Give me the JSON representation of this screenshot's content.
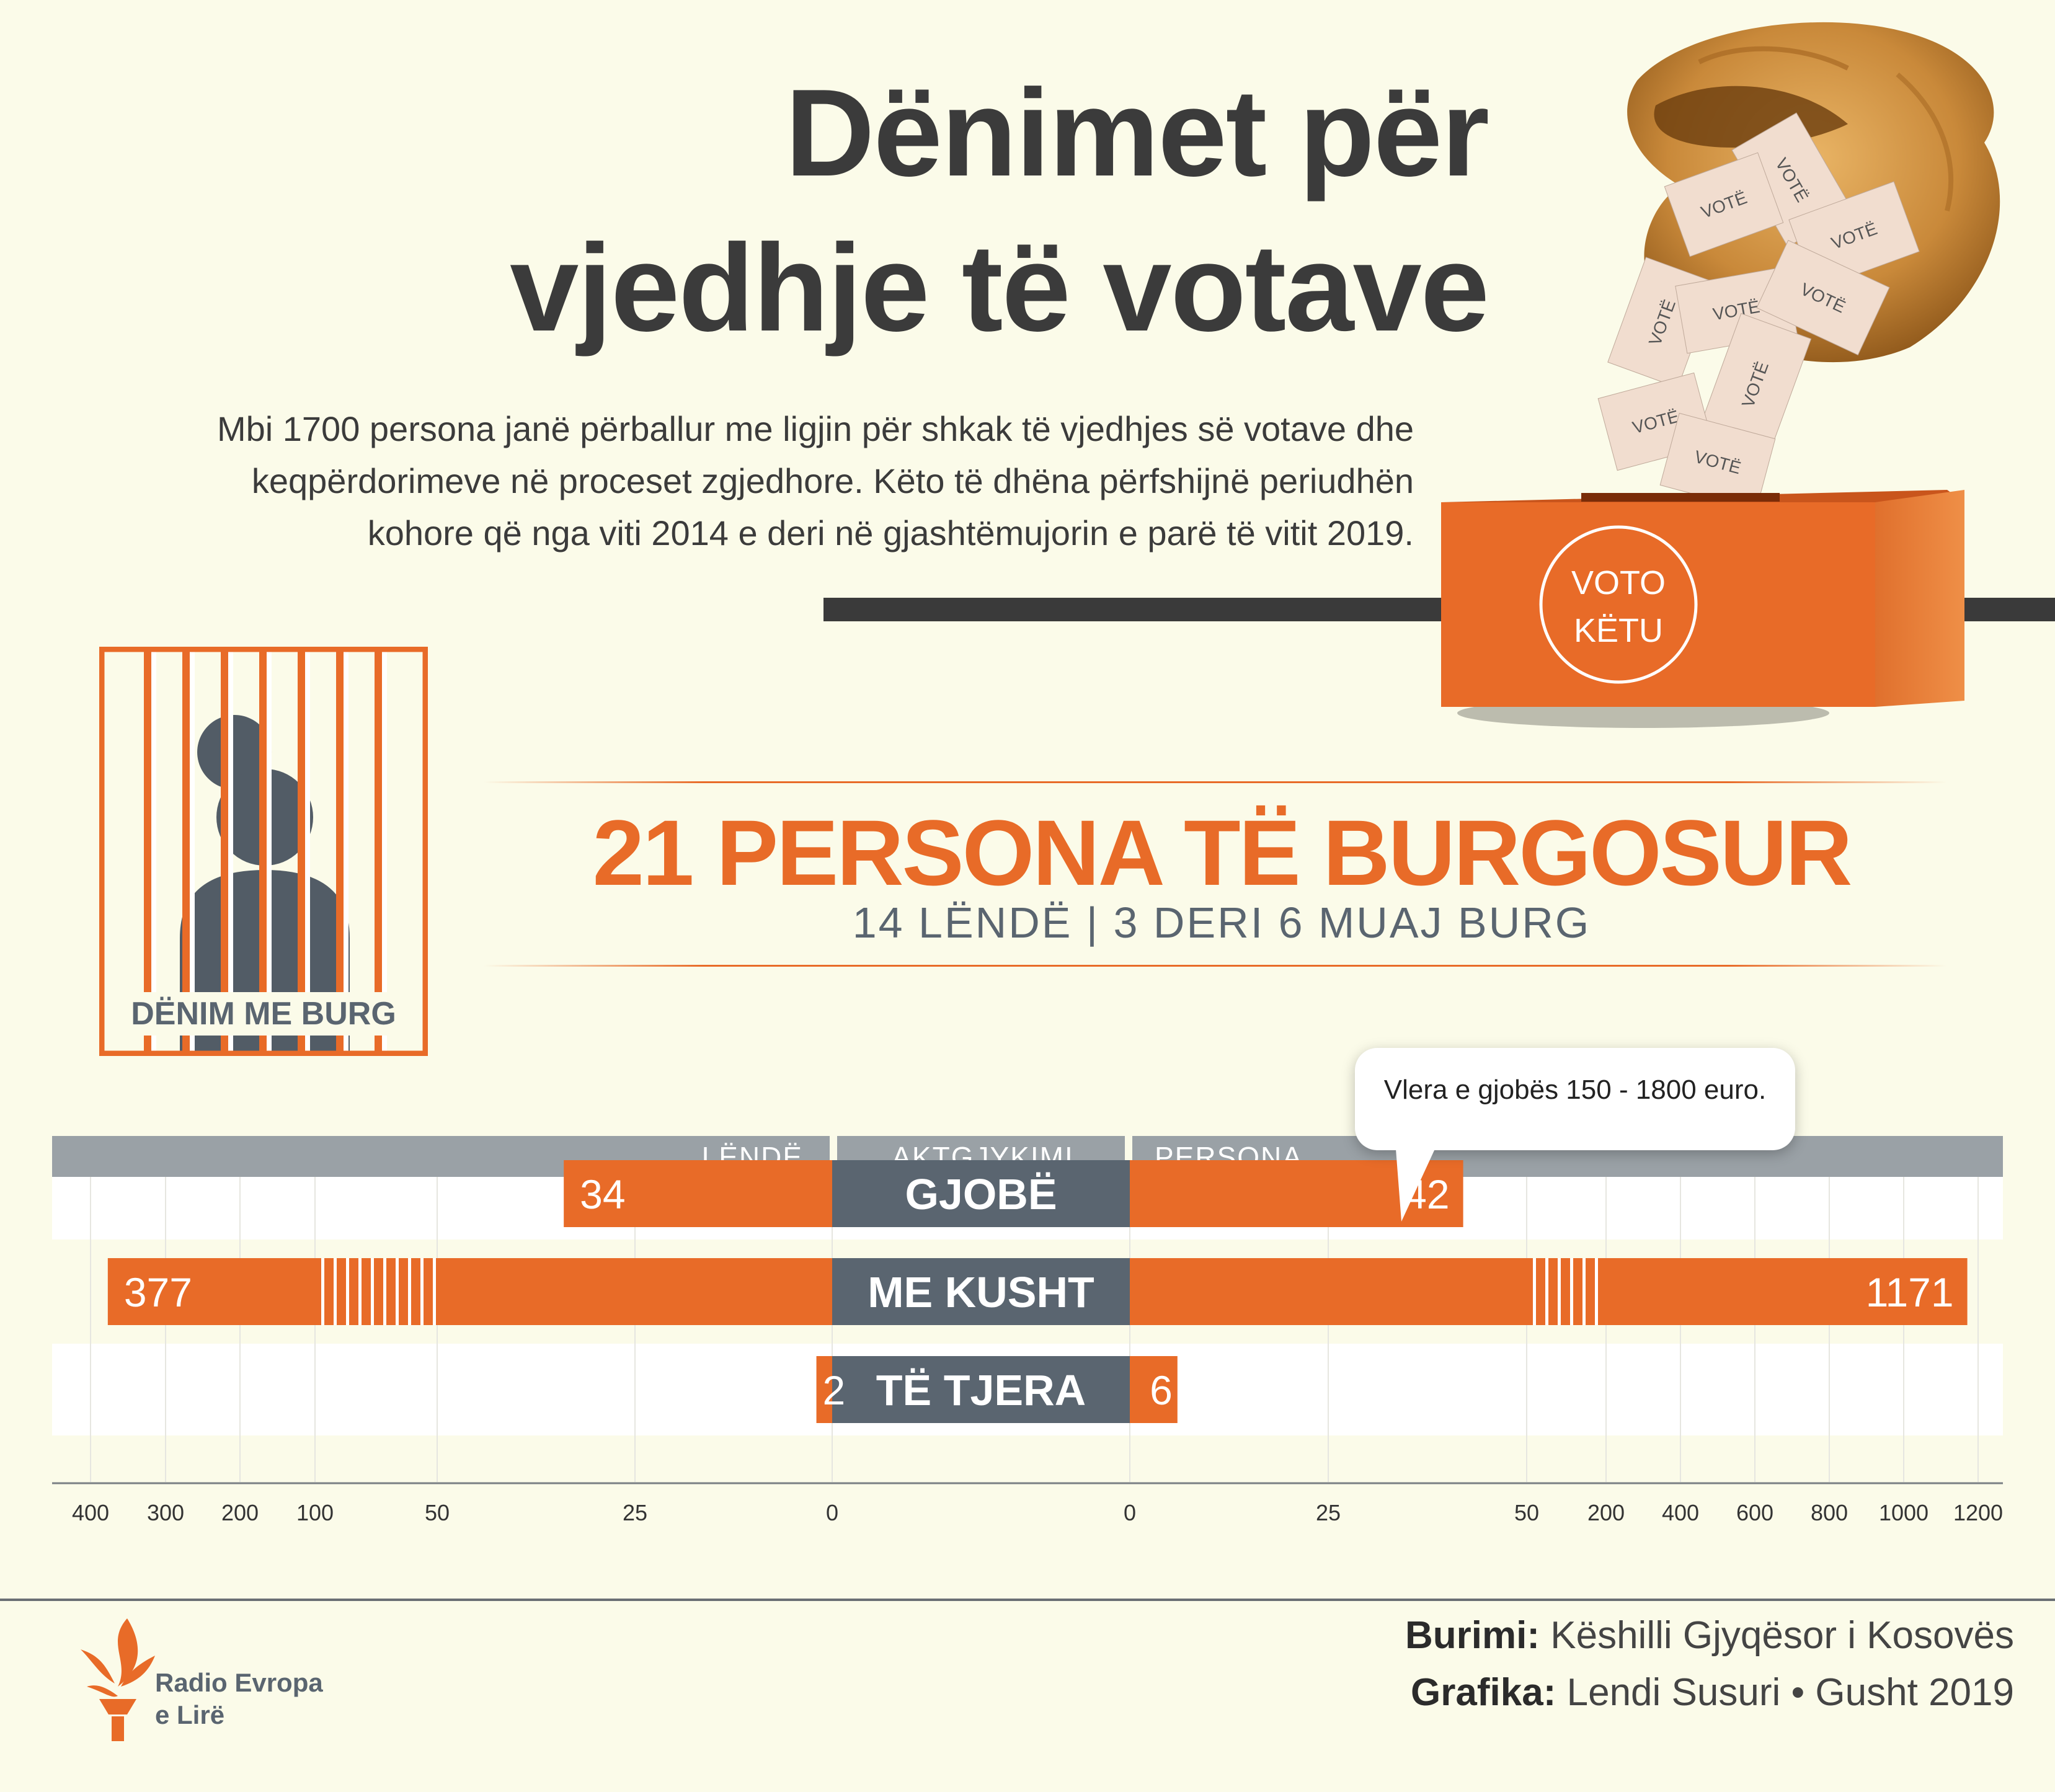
{
  "title": {
    "line1": "Dënimet për",
    "line2": "vjedhje të votave"
  },
  "intro": {
    "line1": "Mbi 1700 persona janë përballur me ligjin për shkak të vjedhjes së votave dhe",
    "line2": "keqpërdorimeve në proceset zgjedhore. Këto të dhëna përfshijnë periudhën",
    "line3": "kohore që nga viti 2014 e deri në gjashtëmujorin e parë të vitit 2019."
  },
  "illustration": {
    "ballot_label": "VOTË",
    "box_label_line1": "VOTO",
    "box_label_line2": "KËTU"
  },
  "prison": {
    "label": "DËNIM ME BURG"
  },
  "prison_stats": {
    "headline": "21 PERSONA TË BURGOSUR",
    "subline": "14 LËNDË | 3 DERI 6 MUAJ BURG"
  },
  "chart_data": {
    "type": "bar",
    "title": "",
    "headers": {
      "left": "LËNDË",
      "center": "AKTGJYKIMI",
      "right": "PERSONA"
    },
    "categories": [
      "GJOBË",
      "ME KUSHT",
      "TË TJERA"
    ],
    "series": [
      {
        "name": "LËNDË",
        "values": [
          34,
          377,
          2
        ]
      },
      {
        "name": "PERSONA",
        "values": [
          42,
          1171,
          6
        ]
      }
    ],
    "axis_breaks": {
      "left": [
        50,
        100
      ],
      "right": [
        50,
        200
      ]
    },
    "left_ticks": [
      "400",
      "300",
      "200",
      "100",
      "50",
      "25",
      "0"
    ],
    "right_ticks": [
      "0",
      "25",
      "50",
      "200",
      "400",
      "600",
      "800",
      "1000",
      "1200"
    ],
    "annotation": "Vlera e gjobës 150 - 1800 euro."
  },
  "credits": {
    "source_label": "Burimi:",
    "source_value": "Këshilli Gjyqësor i Kosovës",
    "graphic_label": "Grafika:",
    "graphic_value": "Lendi Susuri • Gusht 2019"
  },
  "logo": {
    "line1": "Radio Evropa",
    "line2": "e Lirë"
  },
  "colors": {
    "orange": "#e86b28",
    "slate": "#5a6570",
    "grey": "#9aa1a6",
    "background": "#fbfbe9"
  }
}
